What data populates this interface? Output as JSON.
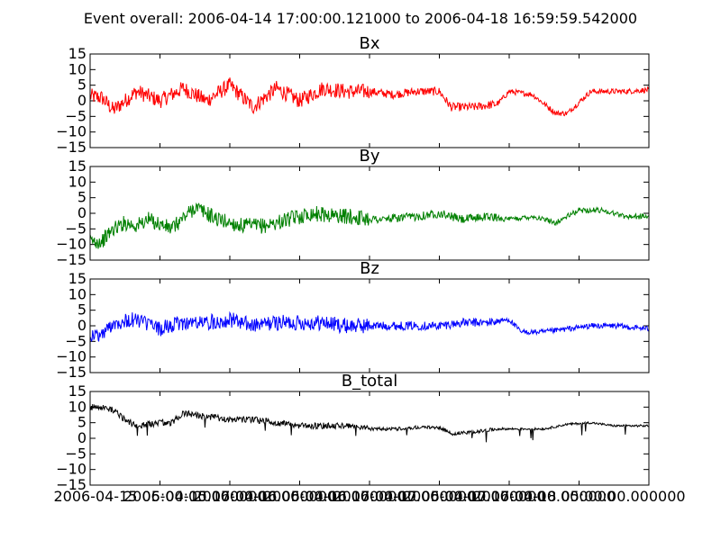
{
  "figure": {
    "suptitle": "Event overall: 2006-04-14 17:00:00.121000 to 2006-04-18 16:59:59.542000"
  },
  "chart_data": [
    {
      "type": "line",
      "title": "Bx",
      "color": "#ff0000",
      "xlabel": "",
      "ylabel": "",
      "x_range": [
        "2006-04-14 17:00:00.121000",
        "2006-04-18 16:59:59.542000"
      ],
      "ylim": [
        -15,
        15
      ],
      "yticks": [
        "15",
        "10",
        "5",
        "0",
        "−5",
        "−10",
        "−15"
      ],
      "series": [
        {
          "x_hours": [
            0,
            2,
            4,
            8,
            12,
            16,
            20,
            24,
            28,
            32,
            36,
            40,
            44,
            48,
            52,
            56,
            60,
            62,
            66,
            70,
            72,
            76,
            80,
            82,
            86,
            90,
            92,
            96
          ],
          "values": [
            1.5,
            1,
            -3,
            3,
            0,
            4,
            0,
            5,
            -2,
            4,
            0,
            4,
            3,
            3,
            2,
            3,
            3,
            -2,
            -2,
            -1,
            3,
            2,
            -4,
            -4,
            3,
            3,
            3,
            3.5
          ]
        }
      ]
    },
    {
      "type": "line",
      "title": "By",
      "color": "#008000",
      "xlabel": "",
      "ylabel": "",
      "ylim": [
        -15,
        15
      ],
      "yticks": [
        "15",
        "10",
        "5",
        "0",
        "−5",
        "−10",
        "−15"
      ],
      "series": [
        {
          "x_hours": [
            0,
            2,
            4,
            6,
            8,
            10,
            14,
            18,
            22,
            26,
            30,
            34,
            38,
            44,
            50,
            56,
            60,
            64,
            68,
            72,
            76,
            80,
            84,
            88,
            92,
            96
          ],
          "values": [
            -9,
            -9,
            -5,
            -3,
            -4,
            -2,
            -5,
            2,
            -2,
            -4,
            -4,
            -2,
            0,
            -1,
            -2,
            -1,
            0,
            -2,
            -1,
            -2,
            -1,
            -3,
            1,
            1,
            -1,
            -1
          ]
        }
      ]
    },
    {
      "type": "line",
      "title": "Bz",
      "color": "#0000ff",
      "xlabel": "",
      "ylabel": "",
      "ylim": [
        -15,
        15
      ],
      "yticks": [
        "15",
        "10",
        "5",
        "0",
        "−5",
        "−10",
        "−15"
      ],
      "series": [
        {
          "x_hours": [
            0,
            2,
            4,
            8,
            12,
            16,
            20,
            24,
            28,
            32,
            36,
            40,
            44,
            48,
            52,
            56,
            60,
            64,
            68,
            72,
            74,
            78,
            82,
            86,
            90,
            96
          ],
          "values": [
            -3,
            -3,
            1,
            2,
            -1,
            1,
            1,
            2,
            0,
            1,
            1,
            1,
            0,
            0,
            0,
            0,
            0,
            1,
            1,
            2,
            -2,
            -2,
            -1,
            0,
            0,
            -1
          ]
        }
      ]
    },
    {
      "type": "line",
      "title": "B_total",
      "color": "#000000",
      "xlabel": "",
      "ylabel": "",
      "ylim": [
        -15,
        15
      ],
      "yticks": [
        "15",
        "10",
        "5",
        "0",
        "−5",
        "−10",
        "−15"
      ],
      "xticks": [
        "2006-04-15 05:00:00.000000",
        "2006-04-15 17:00:00.000000",
        "2006-04-16 05:00:00.000000",
        "2006-04-16 17:00:00.000000",
        "2006-04-17 05:00:00.000000",
        "2006-04-17 17:00:00.000000",
        "2006-04-18 05:00:00.000000"
      ],
      "xtick_hours": [
        12,
        24,
        36,
        48,
        60,
        72,
        84
      ],
      "series": [
        {
          "x_hours": [
            0,
            2,
            4,
            6,
            8,
            12,
            14,
            16,
            20,
            24,
            28,
            32,
            36,
            40,
            44,
            48,
            52,
            56,
            60,
            62,
            66,
            70,
            74,
            78,
            82,
            86,
            90,
            96
          ],
          "values": [
            10,
            10,
            9,
            6,
            4,
            5,
            5,
            8,
            7,
            6,
            6,
            5,
            4,
            4,
            4,
            3,
            3,
            3.5,
            3.5,
            1.5,
            2,
            3,
            3,
            3,
            4.5,
            5,
            4,
            4
          ]
        }
      ]
    }
  ]
}
